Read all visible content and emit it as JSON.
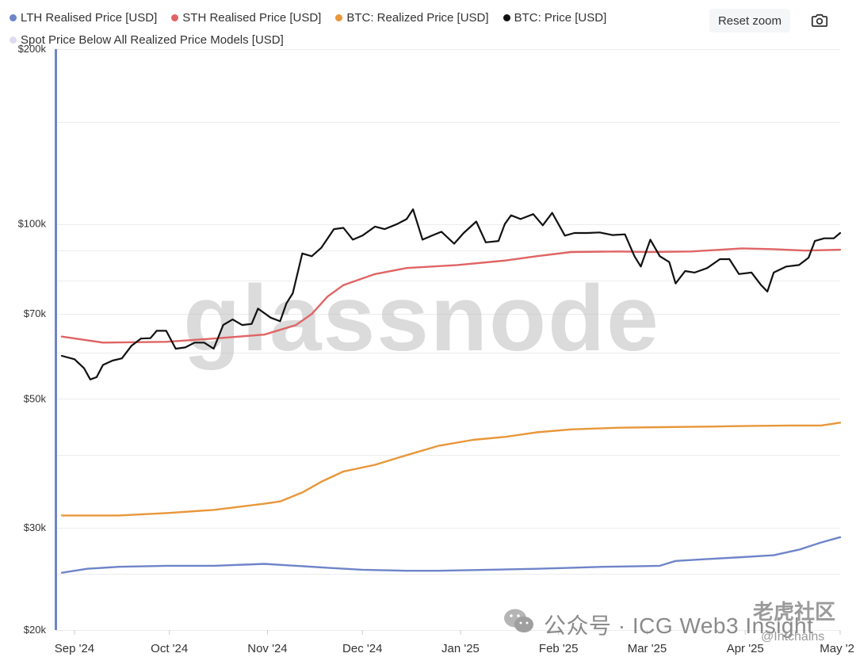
{
  "legend": [
    {
      "label": "LTH Realised Price [USD]",
      "color": "#6f84c9"
    },
    {
      "label": "STH Realised Price [USD]",
      "color": "#e06464"
    },
    {
      "label": "BTC: Realized Price [USD]",
      "color": "#e8973a"
    },
    {
      "label": "BTC: Price [USD]",
      "color": "#111111"
    },
    {
      "label": "Spot Price Below All Realized Price Models [USD]",
      "color": "#dcdcf2"
    }
  ],
  "toolbar": {
    "reset_zoom_label": "Reset zoom",
    "camera_icon": "camera-icon"
  },
  "watermark": {
    "brand": "glassnode",
    "channel": "公众号 · ICG Web3 Insight",
    "corner": "老虎社区",
    "handle": "@Intchains"
  },
  "chart_data": {
    "type": "line",
    "yscale": "log",
    "ylim": [
      20000,
      200000
    ],
    "y_ticks": [
      {
        "value": 20000,
        "label": "$20k"
      },
      {
        "value": 30000,
        "label": "$30k"
      },
      {
        "value": 50000,
        "label": "$50k"
      },
      {
        "value": 70000,
        "label": "$70k"
      },
      {
        "value": 100000,
        "label": "$100k"
      },
      {
        "value": 200000,
        "label": "$200k"
      }
    ],
    "xlim": [
      "2024-08-26",
      "2025-05-01"
    ],
    "x_ticks": [
      {
        "date": "2024-09-01",
        "label": "Sep '24"
      },
      {
        "date": "2024-10-01",
        "label": "Oct '24"
      },
      {
        "date": "2024-11-01",
        "label": "Nov '24"
      },
      {
        "date": "2024-12-01",
        "label": "Dec '24"
      },
      {
        "date": "2025-01-01",
        "label": "Jan '25"
      },
      {
        "date": "2025-02-01",
        "label": "Feb '25"
      },
      {
        "date": "2025-03-01",
        "label": "Mar '25"
      },
      {
        "date": "2025-04-01",
        "label": "Apr '25"
      },
      {
        "date": "2025-05-01",
        "label": "May '2"
      }
    ],
    "grid": "horizontal",
    "legend_position": "top-left",
    "series": [
      {
        "name": "LTH Realised Price [USD]",
        "color": "#6f84c9",
        "points": [
          [
            "2024-08-28",
            25100
          ],
          [
            "2024-09-05",
            25500
          ],
          [
            "2024-09-15",
            25700
          ],
          [
            "2024-09-30",
            25800
          ],
          [
            "2024-10-15",
            25800
          ],
          [
            "2024-10-31",
            26000
          ],
          [
            "2024-11-10",
            25800
          ],
          [
            "2024-11-20",
            25600
          ],
          [
            "2024-12-01",
            25400
          ],
          [
            "2024-12-15",
            25300
          ],
          [
            "2024-12-25",
            25300
          ],
          [
            "2025-01-10",
            25400
          ],
          [
            "2025-01-25",
            25500
          ],
          [
            "2025-02-05",
            25600
          ],
          [
            "2025-02-15",
            25700
          ],
          [
            "2025-02-25",
            25750
          ],
          [
            "2025-03-05",
            25800
          ],
          [
            "2025-03-10",
            26300
          ],
          [
            "2025-03-20",
            26500
          ],
          [
            "2025-03-31",
            26700
          ],
          [
            "2025-04-10",
            26900
          ],
          [
            "2025-04-18",
            27500
          ],
          [
            "2025-04-25",
            28300
          ],
          [
            "2025-05-01",
            28900
          ]
        ]
      },
      {
        "name": "STH Realised Price [USD]",
        "color": "#e06464",
        "points": [
          [
            "2024-08-28",
            64000
          ],
          [
            "2024-09-10",
            62500
          ],
          [
            "2024-09-30",
            62700
          ],
          [
            "2024-10-15",
            63500
          ],
          [
            "2024-10-31",
            64500
          ],
          [
            "2024-11-10",
            67000
          ],
          [
            "2024-11-15",
            70000
          ],
          [
            "2024-11-20",
            75000
          ],
          [
            "2024-11-25",
            78500
          ],
          [
            "2024-12-05",
            82000
          ],
          [
            "2024-12-15",
            84000
          ],
          [
            "2024-12-31",
            85000
          ],
          [
            "2025-01-15",
            86500
          ],
          [
            "2025-01-25",
            88000
          ],
          [
            "2025-02-05",
            89500
          ],
          [
            "2025-02-20",
            89700
          ],
          [
            "2025-03-01",
            89500
          ],
          [
            "2025-03-15",
            89700
          ],
          [
            "2025-03-31",
            90800
          ],
          [
            "2025-04-10",
            90500
          ],
          [
            "2025-04-20",
            90000
          ],
          [
            "2025-05-01",
            90300
          ]
        ]
      },
      {
        "name": "BTC: Realized Price [USD]",
        "color": "#e8973a",
        "points": [
          [
            "2024-08-28",
            31500
          ],
          [
            "2024-09-15",
            31500
          ],
          [
            "2024-09-30",
            31800
          ],
          [
            "2024-10-15",
            32200
          ],
          [
            "2024-10-31",
            33000
          ],
          [
            "2024-11-05",
            33300
          ],
          [
            "2024-11-12",
            34500
          ],
          [
            "2024-11-18",
            36000
          ],
          [
            "2024-11-25",
            37500
          ],
          [
            "2024-12-05",
            38500
          ],
          [
            "2024-12-15",
            40000
          ],
          [
            "2024-12-25",
            41500
          ],
          [
            "2025-01-05",
            42500
          ],
          [
            "2025-01-15",
            43000
          ],
          [
            "2025-01-25",
            43800
          ],
          [
            "2025-02-05",
            44300
          ],
          [
            "2025-02-20",
            44600
          ],
          [
            "2025-03-05",
            44700
          ],
          [
            "2025-03-20",
            44800
          ],
          [
            "2025-03-31",
            44900
          ],
          [
            "2025-04-15",
            45000
          ],
          [
            "2025-04-25",
            45000
          ],
          [
            "2025-05-01",
            45500
          ]
        ]
      },
      {
        "name": "BTC: Price [USD]",
        "color": "#111111",
        "points": [
          [
            "2024-08-28",
            59300
          ],
          [
            "2024-09-01",
            58500
          ],
          [
            "2024-09-04",
            56500
          ],
          [
            "2024-09-06",
            54000
          ],
          [
            "2024-09-08",
            54500
          ],
          [
            "2024-09-10",
            57200
          ],
          [
            "2024-09-13",
            58200
          ],
          [
            "2024-09-16",
            58700
          ],
          [
            "2024-09-19",
            61700
          ],
          [
            "2024-09-22",
            63500
          ],
          [
            "2024-09-25",
            63600
          ],
          [
            "2024-09-27",
            65500
          ],
          [
            "2024-09-30",
            65500
          ],
          [
            "2024-10-03",
            61000
          ],
          [
            "2024-10-06",
            61300
          ],
          [
            "2024-10-09",
            62500
          ],
          [
            "2024-10-12",
            62500
          ],
          [
            "2024-10-15",
            61000
          ],
          [
            "2024-10-18",
            67000
          ],
          [
            "2024-10-21",
            68500
          ],
          [
            "2024-10-24",
            67000
          ],
          [
            "2024-10-27",
            67300
          ],
          [
            "2024-10-29",
            71500
          ],
          [
            "2024-11-02",
            69000
          ],
          [
            "2024-11-05",
            68000
          ],
          [
            "2024-11-07",
            73000
          ],
          [
            "2024-11-09",
            76000
          ],
          [
            "2024-11-12",
            89000
          ],
          [
            "2024-11-15",
            88000
          ],
          [
            "2024-11-18",
            91000
          ],
          [
            "2024-11-22",
            98000
          ],
          [
            "2024-11-25",
            98500
          ],
          [
            "2024-11-28",
            94000
          ],
          [
            "2024-12-01",
            95500
          ],
          [
            "2024-12-05",
            99000
          ],
          [
            "2024-12-08",
            98000
          ],
          [
            "2024-12-12",
            100000
          ],
          [
            "2024-12-15",
            102000
          ],
          [
            "2024-12-17",
            106000
          ],
          [
            "2024-12-20",
            94000
          ],
          [
            "2024-12-23",
            95500
          ],
          [
            "2024-12-26",
            97000
          ],
          [
            "2024-12-30",
            92500
          ],
          [
            "2025-01-02",
            96500
          ],
          [
            "2025-01-06",
            101000
          ],
          [
            "2025-01-09",
            93000
          ],
          [
            "2025-01-13",
            93500
          ],
          [
            "2025-01-15",
            100000
          ],
          [
            "2025-01-17",
            103500
          ],
          [
            "2025-01-20",
            102000
          ],
          [
            "2025-01-24",
            104000
          ],
          [
            "2025-01-27",
            99500
          ],
          [
            "2025-01-30",
            104500
          ],
          [
            "2025-02-03",
            95500
          ],
          [
            "2025-02-06",
            96500
          ],
          [
            "2025-02-10",
            96500
          ],
          [
            "2025-02-14",
            96700
          ],
          [
            "2025-02-18",
            95700
          ],
          [
            "2025-02-22",
            96000
          ],
          [
            "2025-02-25",
            88000
          ],
          [
            "2025-02-27",
            84500
          ],
          [
            "2025-03-02",
            94000
          ],
          [
            "2025-03-05",
            88000
          ],
          [
            "2025-03-08",
            86000
          ],
          [
            "2025-03-10",
            79000
          ],
          [
            "2025-03-13",
            83000
          ],
          [
            "2025-03-16",
            82500
          ],
          [
            "2025-03-20",
            84000
          ],
          [
            "2025-03-24",
            87000
          ],
          [
            "2025-03-27",
            87000
          ],
          [
            "2025-03-30",
            82000
          ],
          [
            "2025-04-03",
            82500
          ],
          [
            "2025-04-06",
            78500
          ],
          [
            "2025-04-08",
            76500
          ],
          [
            "2025-04-10",
            82500
          ],
          [
            "2025-04-14",
            84500
          ],
          [
            "2025-04-18",
            85000
          ],
          [
            "2025-04-21",
            87500
          ],
          [
            "2025-04-23",
            93500
          ],
          [
            "2025-04-26",
            94500
          ],
          [
            "2025-04-29",
            94500
          ],
          [
            "2025-05-01",
            96500
          ]
        ]
      }
    ]
  }
}
